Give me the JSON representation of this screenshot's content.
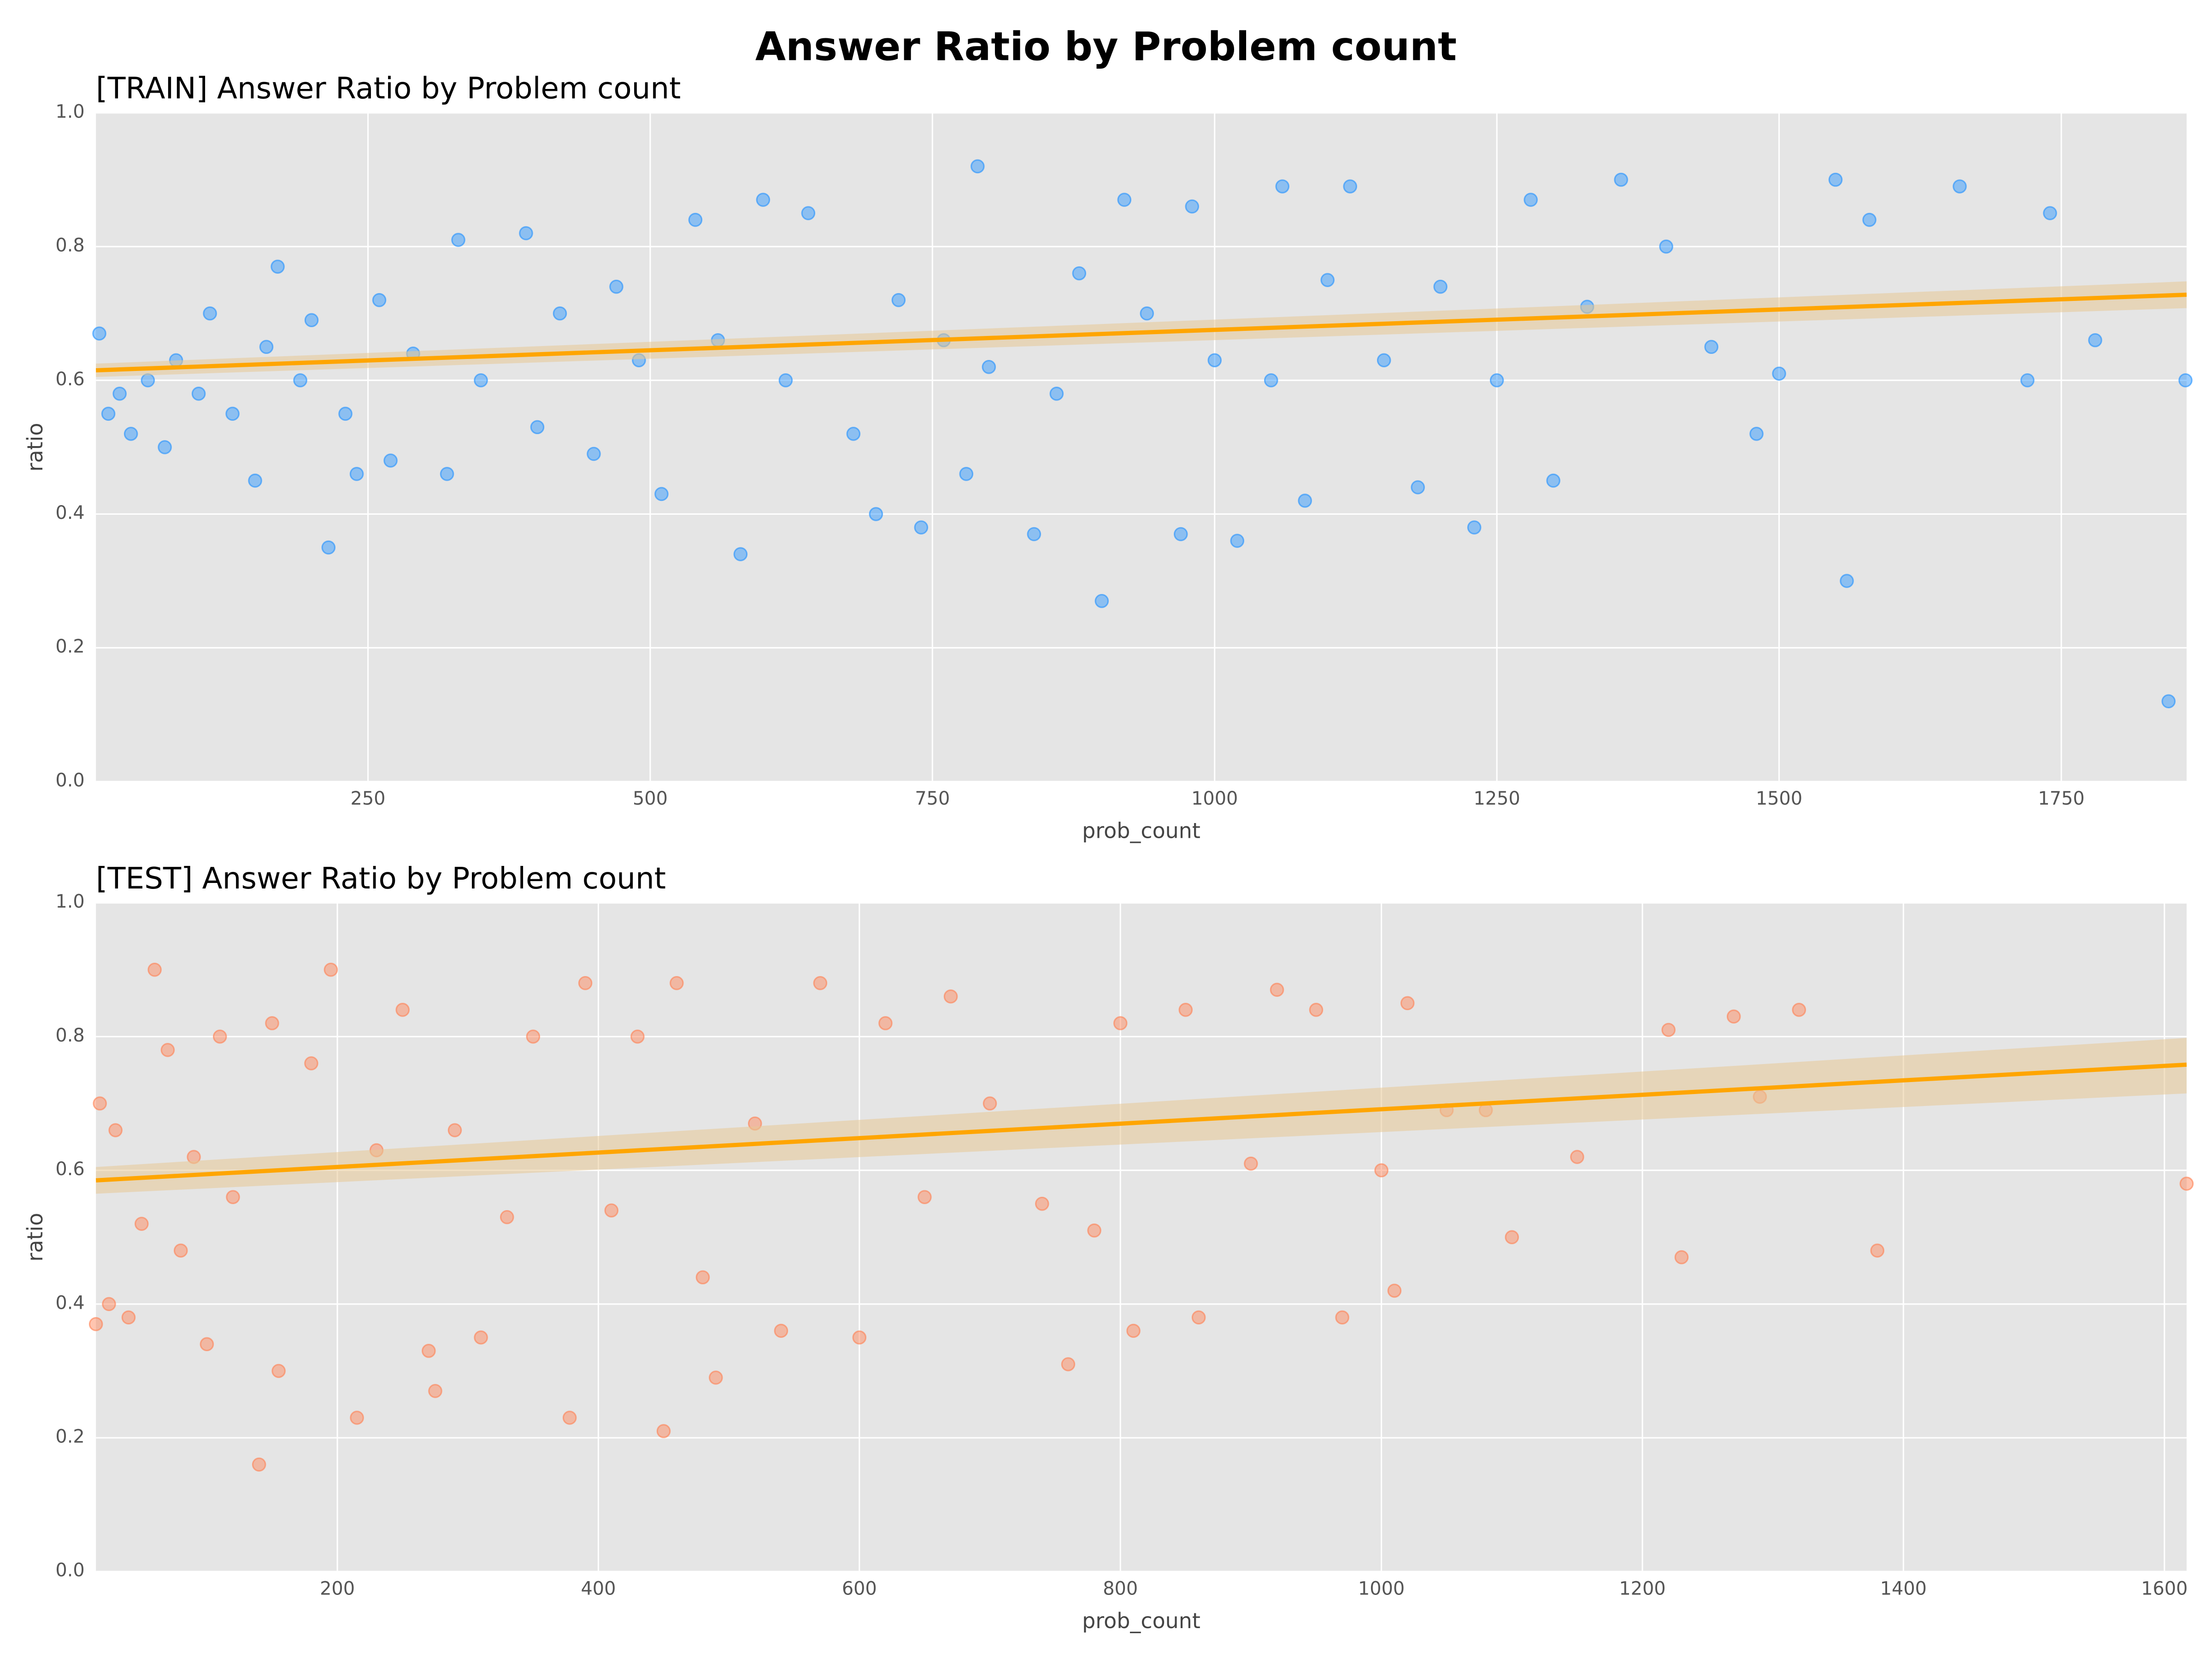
{
  "title": "Answer Ratio by Problem count",
  "chart_data": [
    {
      "type": "scatter",
      "title": "[TRAIN] Answer Ratio by Problem count",
      "xlabel": "prob_count",
      "ylabel": "ratio",
      "xlim": [
        9,
        1861
      ],
      "ylim": [
        0,
        1
      ],
      "grid": true,
      "xticks": [
        250,
        500,
        750,
        1000,
        1250,
        1500,
        1750
      ],
      "yticks": [
        {
          "value": 0,
          "label": "0.0"
        },
        {
          "value": 0.2,
          "label": "0.2"
        },
        {
          "value": 0.4,
          "label": "0.4"
        },
        {
          "value": 0.6,
          "label": "0.6"
        },
        {
          "value": 0.8,
          "label": "0.8"
        },
        {
          "value": 1,
          "label": "1.0"
        }
      ],
      "points": {
        "color": "#1e90ff",
        "x": [
          12,
          20,
          30,
          40,
          55,
          70,
          80,
          100,
          110,
          130,
          150,
          160,
          170,
          190,
          200,
          215,
          230,
          240,
          260,
          270,
          290,
          320,
          330,
          350,
          390,
          400,
          420,
          450,
          470,
          490,
          510,
          540,
          560,
          580,
          600,
          620,
          640,
          680,
          700,
          720,
          740,
          760,
          780,
          790,
          800,
          840,
          860,
          880,
          900,
          920,
          940,
          970,
          980,
          1000,
          1020,
          1050,
          1060,
          1080,
          1100,
          1120,
          1150,
          1180,
          1200,
          1230,
          1250,
          1280,
          1300,
          1330,
          1360,
          1400,
          1440,
          1480,
          1500,
          1550,
          1560,
          1580,
          1660,
          1720,
          1740,
          1780,
          1845,
          1860
        ],
        "y": [
          0.67,
          0.55,
          0.58,
          0.52,
          0.6,
          0.5,
          0.63,
          0.58,
          0.7,
          0.55,
          0.45,
          0.65,
          0.77,
          0.6,
          0.69,
          0.35,
          0.55,
          0.46,
          0.72,
          0.48,
          0.64,
          0.46,
          0.81,
          0.6,
          0.82,
          0.53,
          0.7,
          0.49,
          0.74,
          0.63,
          0.43,
          0.84,
          0.66,
          0.34,
          0.87,
          0.6,
          0.85,
          0.52,
          0.4,
          0.72,
          0.38,
          0.66,
          0.46,
          0.92,
          0.62,
          0.37,
          0.58,
          0.76,
          0.27,
          0.87,
          0.7,
          0.37,
          0.86,
          0.63,
          0.36,
          0.6,
          0.89,
          0.42,
          0.75,
          0.89,
          0.63,
          0.44,
          0.74,
          0.38,
          0.6,
          0.87,
          0.45,
          0.71,
          0.9,
          0.8,
          0.65,
          0.52,
          0.61,
          0.9,
          0.3,
          0.84,
          0.89,
          0.6,
          0.85,
          0.66,
          0.12,
          0.6
        ]
      },
      "fit": {
        "color": "#ffa500",
        "band_color": "#e8c896",
        "x": [
          9,
          1861
        ],
        "y": [
          0.615,
          0.728
        ],
        "band_low": [
          0.605,
          0.708
        ],
        "band_high": [
          0.625,
          0.748
        ]
      }
    },
    {
      "type": "scatter",
      "title": "[TEST] Answer Ratio by Problem count",
      "xlabel": "prob_count",
      "ylabel": "ratio",
      "xlim": [
        15,
        1617
      ],
      "ylim": [
        0,
        1
      ],
      "grid": true,
      "xticks": [
        200,
        400,
        600,
        800,
        1000,
        1200,
        1400,
        1600
      ],
      "yticks": [
        {
          "value": 0,
          "label": "0.0"
        },
        {
          "value": 0.2,
          "label": "0.2"
        },
        {
          "value": 0.4,
          "label": "0.4"
        },
        {
          "value": 0.6,
          "label": "0.6"
        },
        {
          "value": 0.8,
          "label": "0.8"
        },
        {
          "value": 1,
          "label": "1.0"
        }
      ],
      "points": {
        "color": "#ff7f50",
        "x": [
          15,
          18,
          25,
          30,
          40,
          50,
          60,
          70,
          80,
          90,
          100,
          110,
          120,
          140,
          150,
          155,
          180,
          195,
          215,
          230,
          250,
          270,
          275,
          290,
          310,
          330,
          350,
          378,
          390,
          410,
          430,
          450,
          460,
          480,
          490,
          520,
          540,
          570,
          600,
          620,
          650,
          670,
          700,
          740,
          760,
          780,
          800,
          810,
          850,
          860,
          900,
          920,
          950,
          970,
          1000,
          1010,
          1020,
          1050,
          1080,
          1100,
          1150,
          1220,
          1230,
          1270,
          1290,
          1320,
          1380,
          1617
        ],
        "y": [
          0.37,
          0.7,
          0.4,
          0.66,
          0.38,
          0.52,
          0.9,
          0.78,
          0.48,
          0.62,
          0.34,
          0.8,
          0.56,
          0.16,
          0.82,
          0.3,
          0.76,
          0.9,
          0.23,
          0.63,
          0.84,
          0.33,
          0.27,
          0.66,
          0.35,
          0.53,
          0.8,
          0.23,
          0.88,
          0.54,
          0.8,
          0.21,
          0.88,
          0.44,
          0.29,
          0.67,
          0.36,
          0.88,
          0.35,
          0.82,
          0.56,
          0.86,
          0.7,
          0.55,
          0.31,
          0.51,
          0.82,
          0.36,
          0.84,
          0.38,
          0.61,
          0.87,
          0.84,
          0.38,
          0.6,
          0.42,
          0.85,
          0.69,
          0.69,
          0.5,
          0.62,
          0.81,
          0.47,
          0.83,
          0.71,
          0.84,
          0.48,
          0.58
        ]
      },
      "fit": {
        "color": "#ffa500",
        "band_color": "#e8c896",
        "x": [
          15,
          1617
        ],
        "y": [
          0.585,
          0.758
        ],
        "band_low": [
          0.565,
          0.715
        ],
        "band_high": [
          0.605,
          0.798
        ]
      }
    }
  ]
}
